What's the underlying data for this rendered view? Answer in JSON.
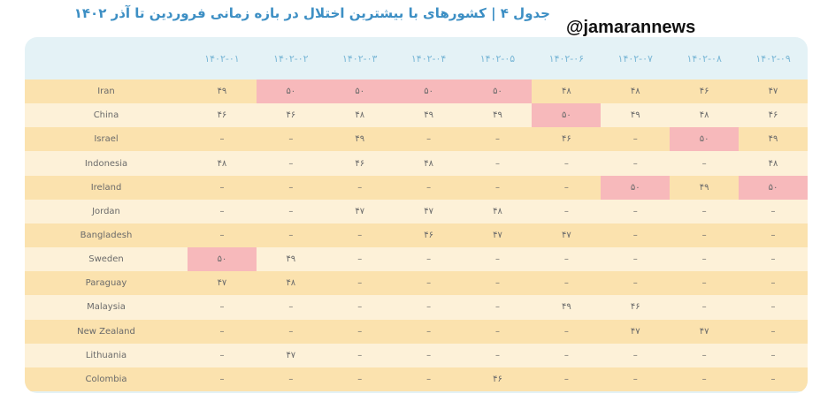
{
  "header": {
    "title": "جدول ۴ | کشورهای با بیشترین اختلال در بازه زمانی فروردین تا آذر ۱۴۰۲",
    "watermark": "@jamarannews"
  },
  "table": {
    "columns": [
      "۱۴۰۲-۰۱",
      "۱۴۰۲-۰۲",
      "۱۴۰۲-۰۳",
      "۱۴۰۲-۰۴",
      "۱۴۰۲-۰۵",
      "۱۴۰۲-۰۶",
      "۱۴۰۲-۰۷",
      "۱۴۰۲-۰۸",
      "۱۴۰۲-۰۹"
    ],
    "rows": [
      {
        "country": "Iran",
        "cells": [
          "۴۹",
          "۵۰",
          "۵۰",
          "۵۰",
          "۵۰",
          "۴۸",
          "۴۸",
          "۴۶",
          "۴۷"
        ]
      },
      {
        "country": "China",
        "cells": [
          "۴۶",
          "۴۶",
          "۴۸",
          "۴۹",
          "۴۹",
          "۵۰",
          "۴۹",
          "۴۸",
          "۴۶"
        ]
      },
      {
        "country": "Israel",
        "cells": [
          "–",
          "–",
          "۴۹",
          "–",
          "–",
          "۴۶",
          "–",
          "۵۰",
          "۴۹"
        ]
      },
      {
        "country": "Indonesia",
        "cells": [
          "۴۸",
          "–",
          "۴۶",
          "۴۸",
          "–",
          "–",
          "–",
          "–",
          "۴۸"
        ]
      },
      {
        "country": "Ireland",
        "cells": [
          "–",
          "–",
          "–",
          "–",
          "–",
          "–",
          "۵۰",
          "۴۹",
          "۵۰"
        ]
      },
      {
        "country": "Jordan",
        "cells": [
          "–",
          "–",
          "۴۷",
          "۴۷",
          "۴۸",
          "–",
          "–",
          "–",
          "–"
        ]
      },
      {
        "country": "Bangladesh",
        "cells": [
          "–",
          "–",
          "–",
          "۴۶",
          "۴۷",
          "۴۷",
          "–",
          "–",
          "–"
        ]
      },
      {
        "country": "Sweden",
        "cells": [
          "۵۰",
          "۴۹",
          "–",
          "–",
          "–",
          "–",
          "–",
          "–",
          "–"
        ]
      },
      {
        "country": "Paraguay",
        "cells": [
          "۴۷",
          "۴۸",
          "–",
          "–",
          "–",
          "–",
          "–",
          "–",
          "–"
        ]
      },
      {
        "country": "Malaysia",
        "cells": [
          "–",
          "–",
          "–",
          "–",
          "–",
          "۴۹",
          "۴۶",
          "–",
          "–"
        ]
      },
      {
        "country": "New Zealand",
        "cells": [
          "–",
          "–",
          "–",
          "–",
          "–",
          "–",
          "۴۷",
          "۴۷",
          "–"
        ]
      },
      {
        "country": "Lithuania",
        "cells": [
          "–",
          "۴۷",
          "–",
          "–",
          "–",
          "–",
          "–",
          "–",
          "–"
        ]
      },
      {
        "country": "Colombia",
        "cells": [
          "–",
          "–",
          "–",
          "–",
          "۴۶",
          "–",
          "–",
          "–",
          "–"
        ]
      }
    ],
    "highlighted": [
      [
        0,
        1
      ],
      [
        0,
        2
      ],
      [
        0,
        3
      ],
      [
        0,
        4
      ],
      [
        1,
        5
      ],
      [
        2,
        7
      ],
      [
        4,
        6
      ],
      [
        4,
        8
      ],
      [
        7,
        0
      ]
    ],
    "highlight_color": "#f7b9bb",
    "row_colors": [
      "#fbe2ae",
      "#fdf1d8"
    ]
  }
}
